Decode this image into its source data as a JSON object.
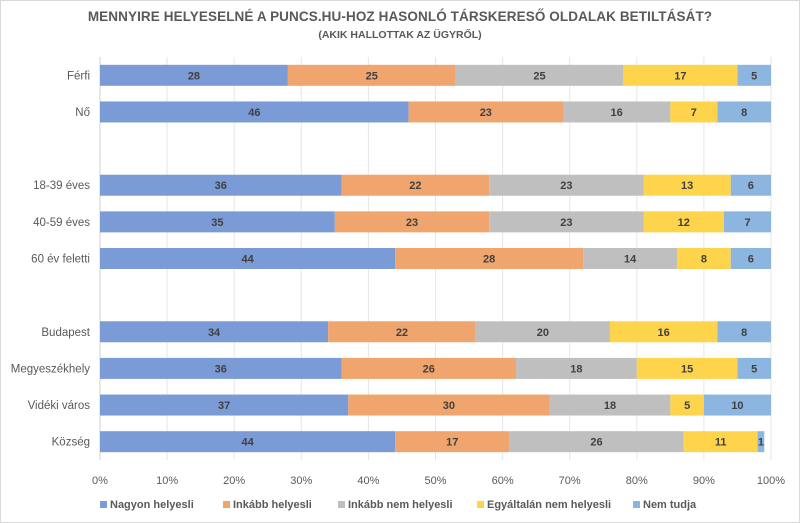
{
  "chart_data": {
    "type": "bar",
    "orientation": "horizontal",
    "stacked": "percent",
    "title": "MENNYIRE HELYESELNÉ A PUNCS.HU-HOZ HASONLÓ TÁRSKERESŐ OLDALAK BETILTÁSÁT?",
    "subtitle": "(AKIK HALLOTTAK AZ ÜGYRŐL)",
    "xlabel": "",
    "ylabel": "",
    "xlim": [
      0,
      100
    ],
    "x_ticks": [
      "0%",
      "10%",
      "20%",
      "30%",
      "40%",
      "50%",
      "60%",
      "70%",
      "80%",
      "90%",
      "100%"
    ],
    "grid": true,
    "legend_position": "bottom",
    "categories": [
      "Férfi",
      "Nő",
      "",
      "18-39 éves",
      "40-59 éves",
      "60 év feletti",
      "",
      "Budapest",
      "Megyeszékhely",
      "Vidéki város",
      "Község"
    ],
    "series": [
      {
        "name": "Nagyon helyesli",
        "color": "#7b9bd6",
        "values": [
          28,
          46,
          null,
          36,
          35,
          44,
          null,
          34,
          36,
          37,
          44
        ]
      },
      {
        "name": "Inkább helyesli",
        "color": "#f0a46e",
        "values": [
          25,
          23,
          null,
          22,
          23,
          28,
          null,
          22,
          26,
          30,
          17
        ]
      },
      {
        "name": "Inkább nem helyesli",
        "color": "#bfbfbf",
        "values": [
          25,
          16,
          null,
          23,
          23,
          14,
          null,
          20,
          18,
          18,
          26
        ]
      },
      {
        "name": "Egyáltalán nem helyesli",
        "color": "#ffd44d",
        "values": [
          17,
          7,
          null,
          13,
          12,
          8,
          null,
          16,
          15,
          5,
          11
        ]
      },
      {
        "name": "Nem tudja",
        "color": "#8cb6e0",
        "values": [
          5,
          8,
          null,
          6,
          7,
          6,
          null,
          8,
          5,
          10,
          1
        ]
      }
    ]
  }
}
